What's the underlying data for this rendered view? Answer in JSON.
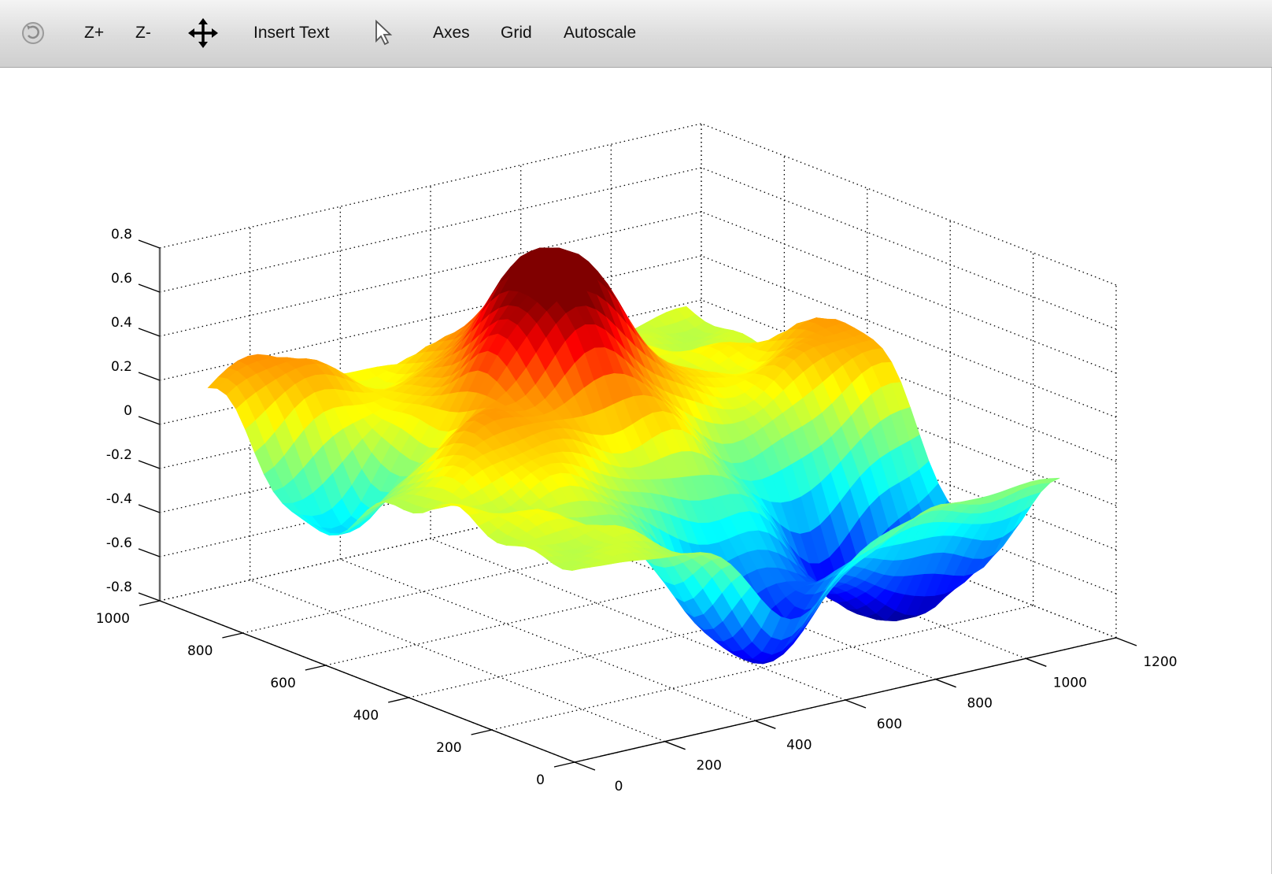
{
  "toolbar": {
    "rotate_icon": "rotate-icon",
    "zoom_in_label": "Z+",
    "zoom_out_label": "Z-",
    "pan_icon": "pan-arrows-icon",
    "insert_text_label": "Insert Text",
    "pointer_icon": "pointer-icon",
    "axes_label": "Axes",
    "grid_label": "Grid",
    "autoscale_label": "Autoscale"
  },
  "chart_data": {
    "type": "surface",
    "title": "",
    "xlabel": "",
    "ylabel": "",
    "zlabel": "",
    "x_ticks": [
      "0",
      "200",
      "400",
      "600",
      "800",
      "1000",
      "1200"
    ],
    "y_ticks": [
      "0",
      "200",
      "400",
      "600",
      "800",
      "1000"
    ],
    "z_ticks": [
      "-0.8",
      "-0.6",
      "-0.4",
      "-0.2",
      "0",
      "0.2",
      "0.4",
      "0.6",
      "0.8"
    ],
    "xlim": [
      0,
      1200
    ],
    "ylim": [
      0,
      1000
    ],
    "zlim": [
      -0.8,
      0.8
    ],
    "grid": true,
    "grid_style": "dotted",
    "colormap": "jet",
    "colormap_colors": [
      "#00008f",
      "#0000ff",
      "#00ffff",
      "#ffff00",
      "#ff8000",
      "#ff0000",
      "#800000"
    ],
    "features": [
      {
        "kind": "peak",
        "x": 560,
        "y": 640,
        "z": 0.55
      },
      {
        "kind": "peak",
        "x": 620,
        "y": 760,
        "z": 0.38
      },
      {
        "kind": "peak",
        "x": 180,
        "y": 900,
        "z": 0.32
      },
      {
        "kind": "peak",
        "x": 1080,
        "y": 520,
        "z": 0.3
      },
      {
        "kind": "peak",
        "x": 300,
        "y": 540,
        "z": 0.22
      },
      {
        "kind": "trough",
        "x": 560,
        "y": 180,
        "z": -0.78
      },
      {
        "kind": "trough",
        "x": 880,
        "y": 300,
        "z": -0.62
      },
      {
        "kind": "trough",
        "x": 1080,
        "y": 260,
        "z": -0.52
      },
      {
        "kind": "trough",
        "x": 120,
        "y": 720,
        "z": -0.42
      }
    ]
  }
}
